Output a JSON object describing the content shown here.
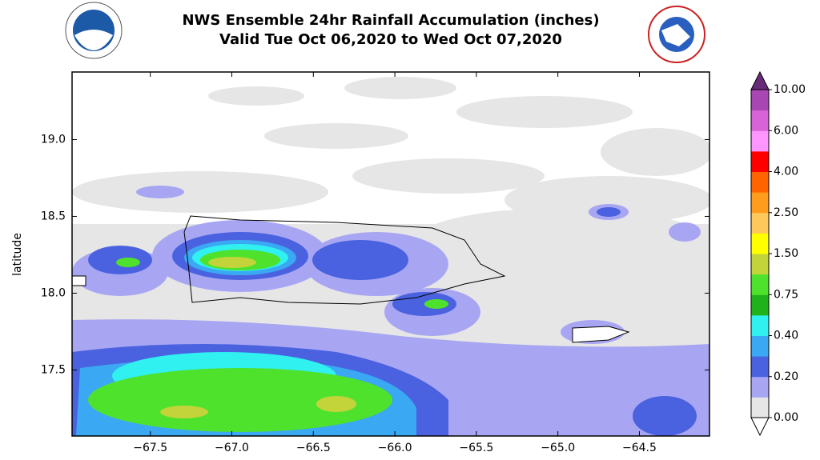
{
  "header": {
    "title": "NWS Ensemble 24hr Rainfall Accumulation (inches)",
    "subtitle": "Valid Tue Oct 06,2020 to Wed Oct 07,2020"
  },
  "map": {
    "xlim": [
      -67.98,
      -64.07
    ],
    "xticks": [
      {
        "value": -67.5,
        "label": "−67.5"
      },
      {
        "value": -67.0,
        "label": "−67.0"
      },
      {
        "value": -66.5,
        "label": "−66.5"
      },
      {
        "value": -66.0,
        "label": "−66.0"
      },
      {
        "value": -65.5,
        "label": "−65.5"
      },
      {
        "value": -65.0,
        "label": "−65.0"
      },
      {
        "value": -64.5,
        "label": "−64.5"
      }
    ],
    "ylabel": "latitude",
    "ylim": [
      17.07,
      19.44
    ],
    "yticks": [
      {
        "value": 19.0,
        "label": "19.0"
      },
      {
        "value": 18.5,
        "label": "18.5"
      },
      {
        "value": 18.0,
        "label": "18.0"
      },
      {
        "value": 17.5,
        "label": "17.5"
      }
    ]
  },
  "colorbar": {
    "colors": [
      "#e6e6e6",
      "#a8a6f2",
      "#4a62e0",
      "#3aa8f2",
      "#30f0f0",
      "#1fb21a",
      "#4ee22c",
      "#c2d43a",
      "#ffff00",
      "#ffc85a",
      "#ff9c1e",
      "#ff6400",
      "#ff0000",
      "#ff96ff",
      "#d862d8",
      "#a846b4"
    ],
    "under_color": "#ffffff",
    "over_color": "#6a2a7a",
    "labels": [
      "0.00",
      "0.20",
      "0.40",
      "0.75",
      "1.50",
      "2.50",
      "4.00",
      "6.00",
      "10.00"
    ]
  }
}
